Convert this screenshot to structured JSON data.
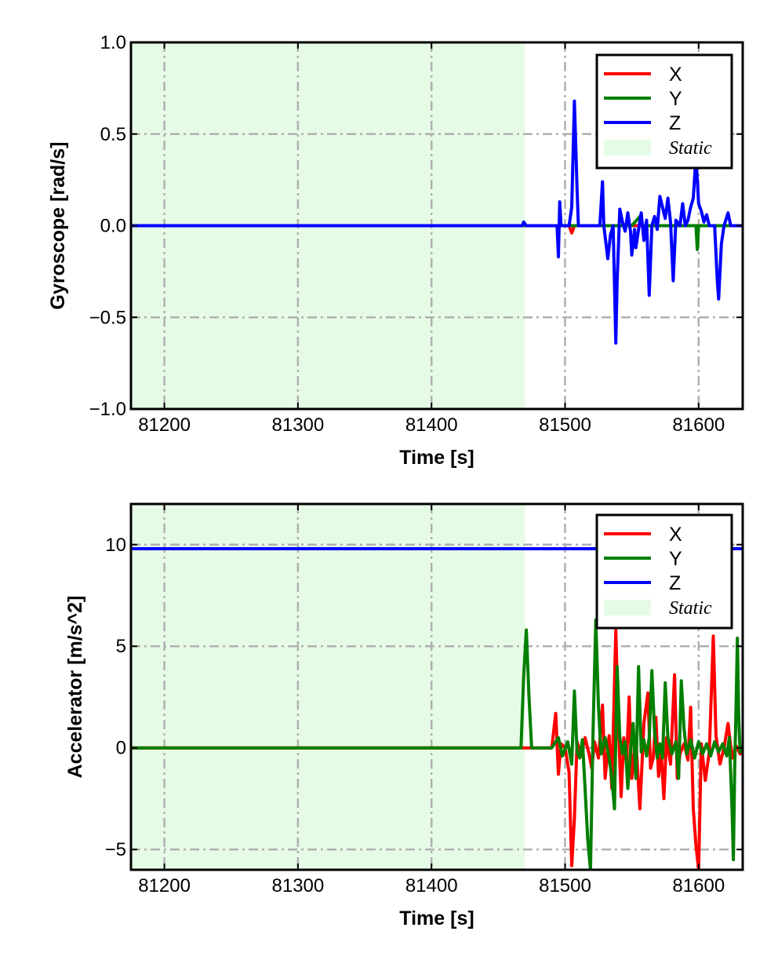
{
  "colors": {
    "x": "#ff0000",
    "y": "#007f00",
    "z": "#0000ff",
    "static_shade": "#e6fbe6",
    "grid": "#b0b0b0"
  },
  "chart_data": [
    {
      "type": "line",
      "ylabel": "Gyroscope [rad/s]",
      "xlabel": "Time [s]",
      "xlim": [
        81175,
        81633
      ],
      "ylim": [
        -1.0,
        1.0
      ],
      "xticks": [
        81200,
        81300,
        81400,
        81500,
        81600
      ],
      "xtick_labels": [
        "81200",
        "81300",
        "81400",
        "81500",
        "81600"
      ],
      "yticks": [
        1.0,
        0.5,
        0.0,
        -0.5,
        -1.0
      ],
      "ytick_labels": [
        "1.0",
        "0.5",
        "0.0",
        "−0.5",
        "−1.0"
      ],
      "grid": true,
      "legend_position": "top-right",
      "static_region": [
        81175,
        81470
      ],
      "legend": [
        {
          "label": "X",
          "key": "x"
        },
        {
          "label": "Y",
          "key": "y"
        },
        {
          "label": "Z",
          "key": "z"
        },
        {
          "label": "Static",
          "key": "static_shade"
        }
      ],
      "series": [
        {
          "name": "X",
          "key": "x",
          "points": [
            [
              81175,
              0
            ],
            [
              81470,
              0
            ],
            [
              81495,
              0
            ],
            [
              81503,
              0
            ],
            [
              81505,
              -0.04
            ],
            [
              81507,
              0
            ],
            [
              81540,
              0
            ],
            [
              81600,
              0
            ],
            [
              81633,
              0
            ]
          ]
        },
        {
          "name": "Y",
          "key": "y",
          "points": [
            [
              81175,
              0
            ],
            [
              81470,
              0
            ],
            [
              81530,
              0
            ],
            [
              81550,
              0
            ],
            [
              81556,
              0.05
            ],
            [
              81558,
              0
            ],
            [
              81598,
              0
            ],
            [
              81599,
              -0.13
            ],
            [
              81600,
              0
            ],
            [
              81633,
              0
            ]
          ]
        },
        {
          "name": "Z",
          "key": "z",
          "points": [
            [
              81175,
              0
            ],
            [
              81468,
              0
            ],
            [
              81469,
              0.02
            ],
            [
              81471,
              0
            ],
            [
              81494,
              0
            ],
            [
              81495,
              -0.17
            ],
            [
              81496,
              0.13
            ],
            [
              81497,
              0
            ],
            [
              81503,
              0
            ],
            [
              81505,
              0.1
            ],
            [
              81507,
              0.68
            ],
            [
              81509,
              0.2
            ],
            [
              81510,
              0
            ],
            [
              81526,
              0
            ],
            [
              81528,
              0.24
            ],
            [
              81529,
              0
            ],
            [
              81532,
              -0.18
            ],
            [
              81534,
              -0.05
            ],
            [
              81536,
              0
            ],
            [
              81538,
              -0.64
            ],
            [
              81539,
              -0.3
            ],
            [
              81541,
              0.09
            ],
            [
              81543,
              0.02
            ],
            [
              81545,
              -0.03
            ],
            [
              81547,
              0.07
            ],
            [
              81549,
              -0.03
            ],
            [
              81550,
              -0.16
            ],
            [
              81552,
              -0.02
            ],
            [
              81553,
              -0.12
            ],
            [
              81555,
              -0.02
            ],
            [
              81557,
              0.07
            ],
            [
              81559,
              -0.08
            ],
            [
              81561,
              0.03
            ],
            [
              81563,
              -0.38
            ],
            [
              81565,
              0
            ],
            [
              81567,
              0.05
            ],
            [
              81569,
              -0.02
            ],
            [
              81571,
              0.16
            ],
            [
              81573,
              0.1
            ],
            [
              81575,
              0.04
            ],
            [
              81577,
              0.15
            ],
            [
              81579,
              0.02
            ],
            [
              81581,
              -0.3
            ],
            [
              81583,
              0.03
            ],
            [
              81586,
              0
            ],
            [
              81588,
              0.12
            ],
            [
              81590,
              0
            ],
            [
              81592,
              0.03
            ],
            [
              81594,
              0.1
            ],
            [
              81596,
              0.15
            ],
            [
              81598,
              0.38
            ],
            [
              81600,
              0.12
            ],
            [
              81602,
              0.08
            ],
            [
              81604,
              0.02
            ],
            [
              81606,
              0.06
            ],
            [
              81608,
              0
            ],
            [
              81612,
              0
            ],
            [
              81614,
              -0.3
            ],
            [
              81615,
              -0.4
            ],
            [
              81617,
              -0.1
            ],
            [
              81619,
              0
            ],
            [
              81622,
              0.07
            ],
            [
              81624,
              0
            ],
            [
              81633,
              0
            ]
          ]
        }
      ]
    },
    {
      "type": "line",
      "ylabel": "Accelerator [m/s^2]",
      "xlabel": "Time [s]",
      "xlim": [
        81175,
        81633
      ],
      "ylim": [
        -6,
        12
      ],
      "xticks": [
        81200,
        81300,
        81400,
        81500,
        81600
      ],
      "xtick_labels": [
        "81200",
        "81300",
        "81400",
        "81500",
        "81600"
      ],
      "yticks": [
        10,
        5,
        0,
        -5
      ],
      "ytick_labels": [
        "10",
        "5",
        "0",
        "−5"
      ],
      "grid": true,
      "legend_position": "top-right",
      "static_region": [
        81175,
        81470
      ],
      "legend": [
        {
          "label": "X",
          "key": "x"
        },
        {
          "label": "Y",
          "key": "y"
        },
        {
          "label": "Z",
          "key": "z"
        },
        {
          "label": "Static",
          "key": "static_shade"
        }
      ],
      "series": [
        {
          "name": "Z",
          "key": "z",
          "points": [
            [
              81175,
              9.8
            ],
            [
              81633,
              9.8
            ]
          ]
        },
        {
          "name": "X",
          "key": "x",
          "points": [
            [
              81175,
              0
            ],
            [
              81470,
              0
            ],
            [
              81490,
              0
            ],
            [
              81493,
              1.7
            ],
            [
              81495,
              -1.3
            ],
            [
              81497,
              0.2
            ],
            [
              81500,
              0
            ],
            [
              81503,
              -1.2
            ],
            [
              81505,
              -5.8
            ],
            [
              81507,
              -3.5
            ],
            [
              81509,
              0.3
            ],
            [
              81512,
              -0.4
            ],
            [
              81515,
              0.5
            ],
            [
              81518,
              -0.3
            ],
            [
              81520,
              -1.0
            ],
            [
              81522,
              0.3
            ],
            [
              81525,
              -0.5
            ],
            [
              81528,
              2.1
            ],
            [
              81530,
              -1.5
            ],
            [
              81533,
              0.6
            ],
            [
              81535,
              -2.0
            ],
            [
              81538,
              5.8
            ],
            [
              81540,
              1.0
            ],
            [
              81542,
              -2.4
            ],
            [
              81544,
              0.5
            ],
            [
              81546,
              -0.8
            ],
            [
              81548,
              2.5
            ],
            [
              81550,
              -1.5
            ],
            [
              81553,
              0.4
            ],
            [
              81556,
              -3.0
            ],
            [
              81559,
              1.2
            ],
            [
              81562,
              2.7
            ],
            [
              81564,
              -1.0
            ],
            [
              81566,
              -0.5
            ],
            [
              81568,
              1.5
            ],
            [
              81570,
              -1.4
            ],
            [
              81572,
              -0.2
            ],
            [
              81574,
              -2.5
            ],
            [
              81576,
              0.5
            ],
            [
              81579,
              -0.8
            ],
            [
              81582,
              3.6
            ],
            [
              81584,
              -1.5
            ],
            [
              81586,
              -0.3
            ],
            [
              81589,
              0.2
            ],
            [
              81592,
              -0.6
            ],
            [
              81594,
              2.0
            ],
            [
              81596,
              -3.0
            ],
            [
              81598,
              -4.8
            ],
            [
              81600,
              -6.0
            ],
            [
              81602,
              0.2
            ],
            [
              81605,
              -1.6
            ],
            [
              81608,
              -0.2
            ],
            [
              81611,
              5.5
            ],
            [
              81613,
              0.6
            ],
            [
              81616,
              -0.8
            ],
            [
              81619,
              0.0
            ],
            [
              81622,
              1.2
            ],
            [
              81625,
              -0.5
            ],
            [
              81628,
              0.1
            ],
            [
              81631,
              -0.3
            ],
            [
              81633,
              -0.2
            ]
          ]
        },
        {
          "name": "Y",
          "key": "y",
          "points": [
            [
              81175,
              0
            ],
            [
              81467,
              0
            ],
            [
              81469,
              3.5
            ],
            [
              81471,
              5.8
            ],
            [
              81473,
              2.5
            ],
            [
              81475,
              0
            ],
            [
              81490,
              0
            ],
            [
              81495,
              0.5
            ],
            [
              81498,
              -0.4
            ],
            [
              81502,
              0.3
            ],
            [
              81505,
              -0.8
            ],
            [
              81507,
              2.8
            ],
            [
              81509,
              -0.2
            ],
            [
              81511,
              -0.5
            ],
            [
              81513,
              0.4
            ],
            [
              81515,
              -2.0
            ],
            [
              81517,
              -4.5
            ],
            [
              81519,
              -6.0
            ],
            [
              81521,
              1.0
            ],
            [
              81523,
              6.3
            ],
            [
              81525,
              2.0
            ],
            [
              81527,
              -0.3
            ],
            [
              81530,
              0.5
            ],
            [
              81533,
              -0.5
            ],
            [
              81535,
              -1.5
            ],
            [
              81537,
              -3.0
            ],
            [
              81539,
              4.0
            ],
            [
              81541,
              0.5
            ],
            [
              81543,
              -0.3
            ],
            [
              81545,
              0.3
            ],
            [
              81547,
              -2.0
            ],
            [
              81549,
              -0.2
            ],
            [
              81551,
              1.2
            ],
            [
              81553,
              -1.5
            ],
            [
              81555,
              4.0
            ],
            [
              81557,
              -0.2
            ],
            [
              81559,
              0.4
            ],
            [
              81561,
              -0.4
            ],
            [
              81563,
              0.5
            ],
            [
              81565,
              3.8
            ],
            [
              81567,
              0.8
            ],
            [
              81569,
              -0.5
            ],
            [
              81571,
              0.2
            ],
            [
              81573,
              -0.5
            ],
            [
              81575,
              3.2
            ],
            [
              81577,
              0.5
            ],
            [
              81580,
              -0.3
            ],
            [
              81583,
              0.3
            ],
            [
              81585,
              -1.5
            ],
            [
              81587,
              3.3
            ],
            [
              81589,
              1.0
            ],
            [
              81591,
              -0.3
            ],
            [
              81594,
              0.4
            ],
            [
              81597,
              -0.5
            ],
            [
              81600,
              0.3
            ],
            [
              81603,
              -0.3
            ],
            [
              81606,
              0.2
            ],
            [
              81609,
              -0.4
            ],
            [
              81612,
              0.3
            ],
            [
              81615,
              -0.2
            ],
            [
              81618,
              0.2
            ],
            [
              81621,
              -0.4
            ],
            [
              81623,
              0.5
            ],
            [
              81625,
              -3.0
            ],
            [
              81626,
              -5.5
            ],
            [
              81627,
              -1.0
            ],
            [
              81628,
              2.0
            ],
            [
              81629,
              5.4
            ],
            [
              81630,
              1.5
            ],
            [
              81631,
              -0.2
            ],
            [
              81633,
              0.1
            ]
          ]
        }
      ]
    }
  ]
}
